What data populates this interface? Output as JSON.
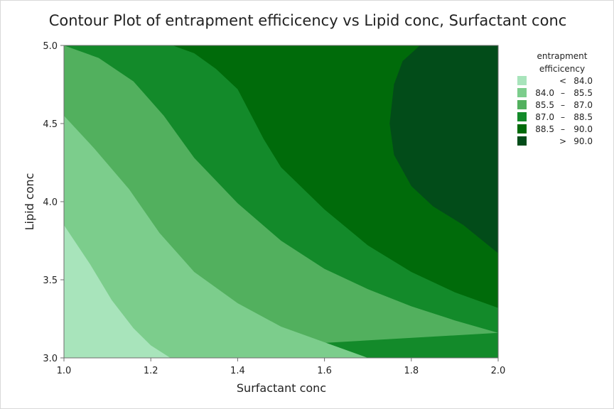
{
  "chart_data": {
    "type": "contour",
    "title": "Contour Plot of entrapment efficicency vs Lipid conc, Surfactant conc",
    "xlabel": "Surfactant conc",
    "ylabel": "Lipid conc",
    "xlim": [
      1.0,
      2.0
    ],
    "ylim": [
      3.0,
      5.0
    ],
    "x_ticks": [
      "1.0",
      "1.2",
      "1.4",
      "1.6",
      "1.8",
      "2.0"
    ],
    "y_ticks": [
      "3.0",
      "3.5",
      "4.0",
      "4.5",
      "5.0"
    ],
    "legend": {
      "title_lines": [
        "entrapment",
        "efficicency"
      ],
      "position": "right",
      "levels": [
        {
          "low": "",
          "sep": "<",
          "high": "84.0",
          "color": "#a8e4bb"
        },
        {
          "low": "84.0",
          "sep": "–",
          "high": "85.5",
          "color": "#7ccd8c"
        },
        {
          "low": "85.5",
          "sep": "–",
          "high": "87.0",
          "color": "#52b05e"
        },
        {
          "low": "87.0",
          "sep": "–",
          "high": "88.5",
          "color": "#138a2a"
        },
        {
          "low": "88.5",
          "sep": "–",
          "high": "90.0",
          "color": "#006b0a"
        },
        {
          "low": "",
          "sep": ">",
          "high": "90.0",
          "color": "#024c19"
        }
      ]
    },
    "contour_lines": [
      {
        "level": 84.0,
        "points": [
          [
            1.0,
            3.85
          ],
          [
            1.06,
            3.6
          ],
          [
            1.11,
            3.37
          ],
          [
            1.16,
            3.19
          ],
          [
            1.2,
            3.08
          ],
          [
            1.245,
            3.0
          ]
        ]
      },
      {
        "level": 85.5,
        "points": [
          [
            1.0,
            4.55
          ],
          [
            1.07,
            4.34
          ],
          [
            1.15,
            4.08
          ],
          [
            1.22,
            3.8
          ],
          [
            1.3,
            3.55
          ],
          [
            1.4,
            3.35
          ],
          [
            1.5,
            3.2
          ],
          [
            1.6,
            3.1
          ],
          [
            1.7,
            3.0
          ]
        ]
      },
      {
        "level": 87.0,
        "points": [
          [
            1.0,
            5.0
          ],
          [
            1.08,
            4.92
          ],
          [
            1.16,
            4.77
          ],
          [
            1.23,
            4.55
          ],
          [
            1.3,
            4.28
          ],
          [
            1.4,
            3.99
          ],
          [
            1.5,
            3.75
          ],
          [
            1.6,
            3.57
          ],
          [
            1.7,
            3.44
          ],
          [
            1.8,
            3.33
          ],
          [
            1.9,
            3.24
          ],
          [
            2.0,
            3.16
          ]
        ]
      },
      {
        "level": 88.5,
        "points": [
          [
            1.25,
            5.0
          ],
          [
            1.3,
            4.95
          ],
          [
            1.35,
            4.85
          ],
          [
            1.4,
            4.72
          ],
          [
            1.46,
            4.4
          ],
          [
            1.5,
            4.22
          ],
          [
            1.6,
            3.95
          ],
          [
            1.7,
            3.72
          ],
          [
            1.8,
            3.55
          ],
          [
            1.9,
            3.42
          ],
          [
            2.0,
            3.32
          ]
        ]
      },
      {
        "level": 90.0,
        "points": [
          [
            1.82,
            5.0
          ],
          [
            1.78,
            4.9
          ],
          [
            1.76,
            4.75
          ],
          [
            1.75,
            4.5
          ],
          [
            1.76,
            4.3
          ],
          [
            1.8,
            4.1
          ],
          [
            1.85,
            3.97
          ],
          [
            1.92,
            3.85
          ],
          [
            2.0,
            3.67
          ]
        ]
      }
    ]
  }
}
